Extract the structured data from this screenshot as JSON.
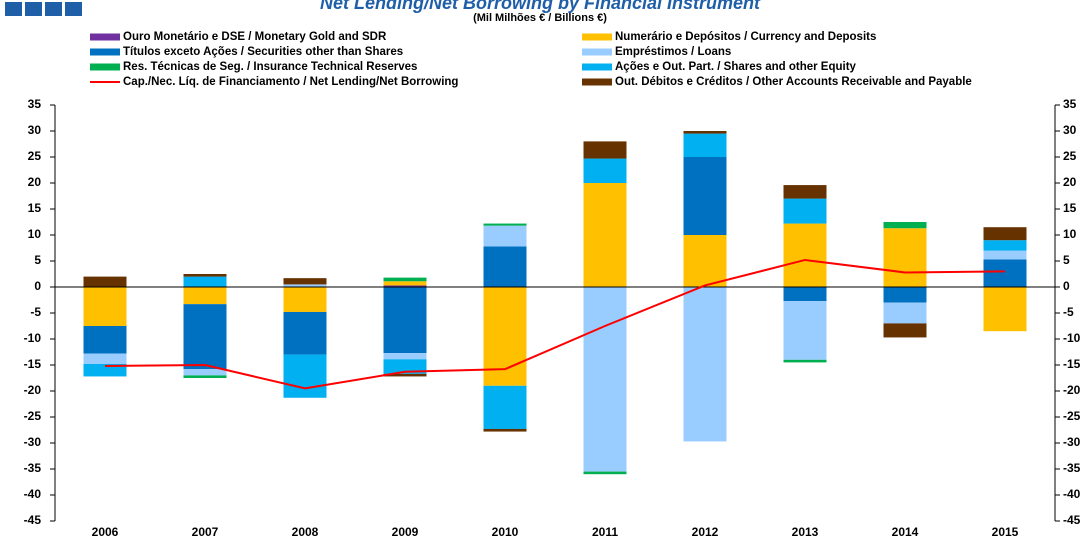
{
  "chart_data": {
    "type": "bar",
    "stacked": true,
    "title": "Net Lending/Net Borrowing by Financial Instrument",
    "subtitle": "(Mil Milhões € / Billions €)",
    "categories": [
      "2006",
      "2007",
      "2008",
      "2009",
      "2010",
      "2011",
      "2012",
      "2013",
      "2014",
      "2015"
    ],
    "series": [
      {
        "name": "Ouro Monetário e DSE / Monetary Gold and SDR",
        "color": "#7030a0",
        "values": [
          0,
          0,
          0,
          0.3,
          0,
          0,
          0,
          0,
          0,
          0
        ]
      },
      {
        "name": "Numerário e Depósitos / Currency and Deposits",
        "color": "#ffc000",
        "values": [
          -7.5,
          -3.3,
          -4.8,
          0.8,
          -19,
          20,
          10,
          12.2,
          11.3,
          -8.5
        ]
      },
      {
        "name": "Títulos exceto Ações / Securities other than Shares",
        "color": "#0070c0",
        "values": [
          -5.3,
          -12.5,
          -8.2,
          -12.7,
          7.8,
          0,
          15,
          -2.7,
          -3,
          5.3
        ]
      },
      {
        "name": "Empréstimos / Loans",
        "color": "#99ccff",
        "values": [
          -2,
          -1.2,
          0.5,
          -1.2,
          4,
          -35.5,
          -29.7,
          -11.3,
          -4,
          1.7
        ]
      },
      {
        "name": "Ações e Out. Part. / Shares and other Equity",
        "color": "#00b0f0",
        "values": [
          -2.4,
          2,
          -8.3,
          -2.8,
          -8.3,
          4.7,
          4.5,
          4.8,
          0,
          2
        ]
      },
      {
        "name": "Res. Técnicas de Seg. / Insurance Technical Reserves",
        "color": "#00b050",
        "values": [
          0,
          -0.5,
          0,
          0.7,
          0.4,
          -0.5,
          0,
          -0.5,
          1.2,
          0
        ]
      },
      {
        "name": "Out. Débitos e Créditos / Other Accounts Receivable and Payable",
        "color": "#663300",
        "values": [
          2,
          0.5,
          1.2,
          -0.5,
          -0.5,
          3.3,
          0.5,
          2.6,
          -2.7,
          2.5
        ]
      },
      {
        "name": "Cap./Nec. Líq. de Financiamento / Net Lending/Net Borrowing",
        "color": "#ff0000",
        "type": "line",
        "values": [
          -15.2,
          -15,
          -19.5,
          -16.3,
          -15.8,
          -7.5,
          0.3,
          5.2,
          2.8,
          3
        ]
      }
    ],
    "ylim": [
      -45,
      35
    ],
    "yticks": [
      -45,
      -40,
      -35,
      -30,
      -25,
      -20,
      -15,
      -10,
      -5,
      0,
      5,
      10,
      15,
      20,
      25,
      30,
      35
    ],
    "y2lim": [
      -45,
      35
    ],
    "y2ticks": [
      -45,
      -40,
      -35,
      -30,
      -25,
      -20,
      -15,
      -10,
      -5,
      0,
      5,
      10,
      15,
      20,
      25,
      30,
      35
    ],
    "grid": false
  }
}
